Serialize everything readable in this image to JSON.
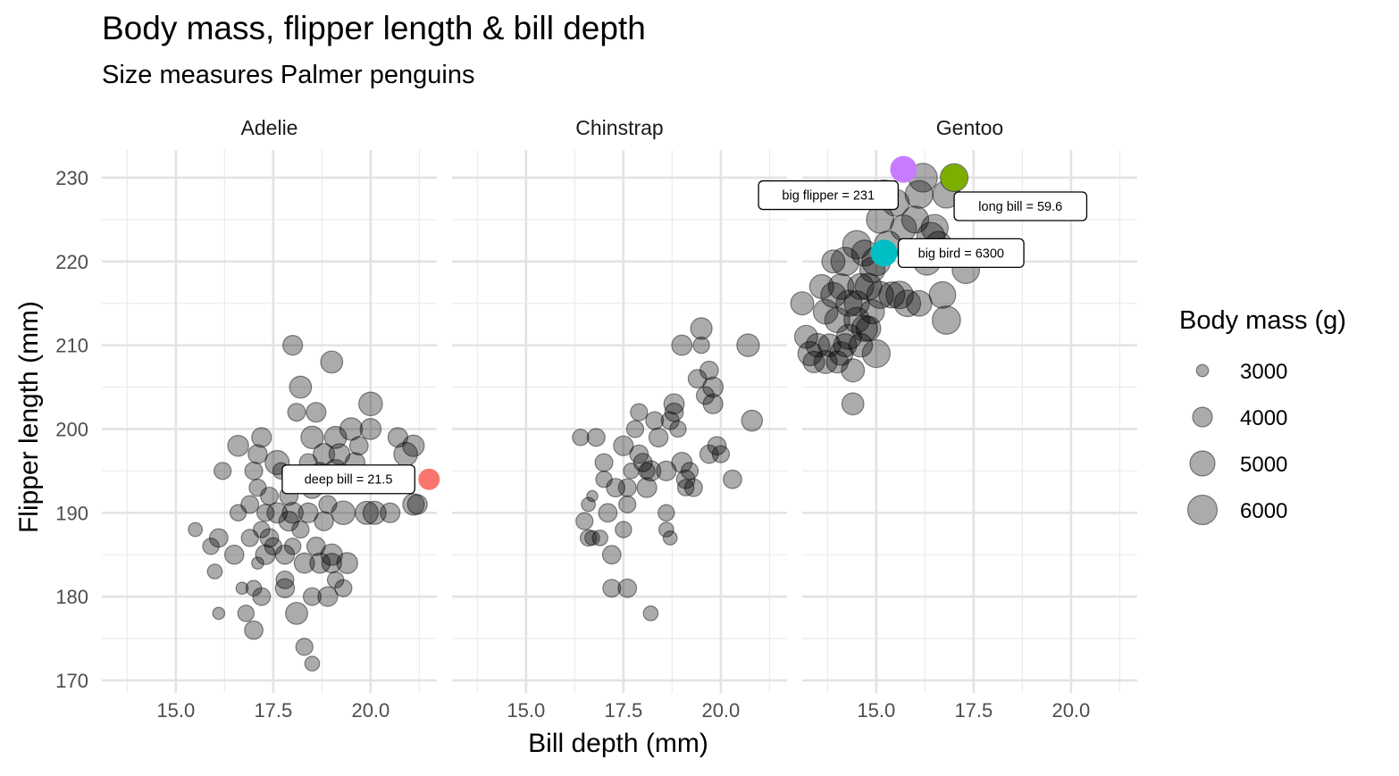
{
  "chart_data": {
    "type": "scatter",
    "title": "Body mass, flipper length & bill depth",
    "subtitle": "Size measures Palmer penguins",
    "xlabel": "Bill depth (mm)",
    "ylabel": "Flipper length (mm)",
    "xlim": [
      13.1,
      21.7
    ],
    "ylim": [
      168.5,
      233.3
    ],
    "x_ticks": [
      "15.0",
      "17.5",
      "20.0"
    ],
    "y_ticks": [
      "170",
      "180",
      "190",
      "200",
      "210",
      "220",
      "230"
    ],
    "grid": true,
    "legend": {
      "title": "Body mass (g)",
      "placement": "right",
      "entries": [
        {
          "label": "3000",
          "value": 3000
        },
        {
          "label": "4000",
          "value": 4000
        },
        {
          "label": "5000",
          "value": 5000
        },
        {
          "label": "6000",
          "value": 6000
        }
      ]
    },
    "point_color": "#000000",
    "point_alpha": 0.33,
    "facets": [
      {
        "name": "Adelie",
        "points": [
          [
            15.5,
            188,
            3200
          ],
          [
            15.9,
            186,
            3500
          ],
          [
            16.0,
            183,
            3300
          ],
          [
            16.1,
            187,
            3800
          ],
          [
            16.1,
            178,
            3000
          ],
          [
            16.2,
            195,
            3600
          ],
          [
            16.5,
            185,
            3900
          ],
          [
            16.6,
            198,
            4200
          ],
          [
            16.6,
            190,
            3500
          ],
          [
            16.7,
            181,
            3000
          ],
          [
            16.8,
            178,
            3500
          ],
          [
            16.9,
            191,
            3700
          ],
          [
            16.9,
            187,
            3600
          ],
          [
            17.0,
            181,
            3400
          ],
          [
            17.0,
            195,
            3700
          ],
          [
            17.0,
            176,
            3800
          ],
          [
            17.1,
            184,
            3000
          ],
          [
            17.1,
            193,
            3600
          ],
          [
            17.1,
            197,
            3900
          ],
          [
            17.2,
            180,
            3700
          ],
          [
            17.2,
            199,
            4000
          ],
          [
            17.2,
            188,
            3500
          ],
          [
            17.3,
            185,
            4000
          ],
          [
            17.3,
            190,
            3600
          ],
          [
            17.4,
            187,
            3800
          ],
          [
            17.4,
            192,
            3700
          ],
          [
            17.5,
            186,
            3600
          ],
          [
            17.6,
            190,
            4100
          ],
          [
            17.6,
            196,
            4800
          ],
          [
            17.7,
            195,
            3500
          ],
          [
            17.8,
            185,
            3900
          ],
          [
            17.8,
            182,
            3700
          ],
          [
            17.8,
            181,
            3900
          ],
          [
            17.9,
            189,
            4000
          ],
          [
            17.9,
            192,
            3800
          ],
          [
            18.0,
            190,
            4200
          ],
          [
            18.0,
            186,
            3500
          ],
          [
            18.0,
            210,
            4000
          ],
          [
            18.1,
            178,
            4400
          ],
          [
            18.1,
            202,
            3700
          ],
          [
            18.2,
            205,
            4400
          ],
          [
            18.2,
            188,
            3600
          ],
          [
            18.3,
            174,
            3600
          ],
          [
            18.3,
            184,
            4100
          ],
          [
            18.4,
            196,
            3700
          ],
          [
            18.4,
            190,
            4000
          ],
          [
            18.5,
            172,
            3300
          ],
          [
            18.5,
            180,
            3700
          ],
          [
            18.5,
            193,
            4300
          ],
          [
            18.5,
            199,
            4500
          ],
          [
            18.6,
            202,
            4000
          ],
          [
            18.6,
            186,
            3800
          ],
          [
            18.7,
            184,
            4100
          ],
          [
            18.7,
            195,
            3600
          ],
          [
            18.8,
            189,
            3900
          ],
          [
            18.8,
            197,
            4300
          ],
          [
            18.9,
            180,
            4000
          ],
          [
            18.9,
            191,
            3700
          ],
          [
            19.0,
            208,
            4400
          ],
          [
            19.0,
            185,
            4300
          ],
          [
            19.0,
            184,
            4000
          ],
          [
            19.1,
            195,
            4500
          ],
          [
            19.1,
            199,
            4400
          ],
          [
            19.1,
            182,
            3500
          ],
          [
            19.2,
            197,
            4200
          ],
          [
            19.3,
            181,
            3600
          ],
          [
            19.3,
            190,
            4700
          ],
          [
            19.4,
            184,
            4200
          ],
          [
            19.5,
            200,
            4500
          ],
          [
            19.6,
            196,
            4000
          ],
          [
            19.7,
            198,
            3800
          ],
          [
            19.9,
            190,
            4600
          ],
          [
            20.0,
            203,
            4700
          ],
          [
            20.0,
            200,
            4200
          ],
          [
            20.1,
            190,
            4600
          ],
          [
            20.3,
            194,
            3800
          ],
          [
            20.5,
            190,
            4000
          ],
          [
            20.7,
            199,
            4000
          ],
          [
            20.9,
            197,
            4700
          ],
          [
            21.1,
            198,
            4300
          ],
          [
            21.1,
            191,
            4300
          ],
          [
            21.2,
            191,
            4000
          ]
        ]
      },
      {
        "name": "Chinstrap",
        "points": [
          [
            16.4,
            199,
            3500
          ],
          [
            16.5,
            189,
            3600
          ],
          [
            16.6,
            191,
            3200
          ],
          [
            16.6,
            187,
            3500
          ],
          [
            16.7,
            192,
            2900
          ],
          [
            16.7,
            187,
            3300
          ],
          [
            16.8,
            199,
            3700
          ],
          [
            16.9,
            187,
            3400
          ],
          [
            17.0,
            196,
            3700
          ],
          [
            17.0,
            194,
            3500
          ],
          [
            17.1,
            190,
            3800
          ],
          [
            17.2,
            181,
            3700
          ],
          [
            17.2,
            185,
            3800
          ],
          [
            17.3,
            193,
            3800
          ],
          [
            17.5,
            198,
            4000
          ],
          [
            17.5,
            188,
            3500
          ],
          [
            17.6,
            193,
            3700
          ],
          [
            17.6,
            191,
            3600
          ],
          [
            17.6,
            181,
            3800
          ],
          [
            17.7,
            195,
            3400
          ],
          [
            17.8,
            200,
            3600
          ],
          [
            17.9,
            202,
            3600
          ],
          [
            17.9,
            197,
            3800
          ],
          [
            18.0,
            196,
            3800
          ],
          [
            18.1,
            195,
            3500
          ],
          [
            18.1,
            193,
            4000
          ],
          [
            18.2,
            178,
            3300
          ],
          [
            18.2,
            195,
            4100
          ],
          [
            18.3,
            201,
            3700
          ],
          [
            18.4,
            199,
            3900
          ],
          [
            18.6,
            195,
            4000
          ],
          [
            18.6,
            190,
            3500
          ],
          [
            18.6,
            188,
            3300
          ],
          [
            18.7,
            187,
            3200
          ],
          [
            18.7,
            201,
            3700
          ],
          [
            18.8,
            203,
            4100
          ],
          [
            18.8,
            202,
            3800
          ],
          [
            18.9,
            200,
            3500
          ],
          [
            19.0,
            210,
            4100
          ],
          [
            19.0,
            196,
            4100
          ],
          [
            19.1,
            194,
            3800
          ],
          [
            19.1,
            193,
            3500
          ],
          [
            19.2,
            195,
            3600
          ],
          [
            19.3,
            193,
            3700
          ],
          [
            19.4,
            206,
            3800
          ],
          [
            19.5,
            212,
            4300
          ],
          [
            19.5,
            210,
            3500
          ],
          [
            19.6,
            204,
            3700
          ],
          [
            19.7,
            207,
            3800
          ],
          [
            19.7,
            197,
            3800
          ],
          [
            19.8,
            203,
            4000
          ],
          [
            19.8,
            205,
            4100
          ],
          [
            19.9,
            198,
            3800
          ],
          [
            20.0,
            197,
            3600
          ],
          [
            20.3,
            194,
            3800
          ],
          [
            20.7,
            210,
            4500
          ],
          [
            20.8,
            201,
            4200
          ]
        ]
      },
      {
        "name": "Gentoo",
        "points": [
          [
            13.1,
            215,
            4600
          ],
          [
            13.2,
            211,
            4600
          ],
          [
            13.3,
            209,
            4800
          ],
          [
            13.4,
            208,
            4300
          ],
          [
            13.5,
            210,
            4700
          ],
          [
            13.6,
            217,
            4800
          ],
          [
            13.7,
            214,
            4900
          ],
          [
            13.7,
            208,
            4600
          ],
          [
            13.8,
            210,
            4500
          ],
          [
            13.9,
            220,
            4600
          ],
          [
            13.9,
            216,
            5000
          ],
          [
            14.0,
            213,
            5000
          ],
          [
            14.0,
            208,
            4400
          ],
          [
            14.1,
            217,
            5100
          ],
          [
            14.1,
            209,
            4700
          ],
          [
            14.2,
            220,
            5700
          ],
          [
            14.2,
            210,
            4600
          ],
          [
            14.3,
            215,
            5200
          ],
          [
            14.3,
            211,
            5000
          ],
          [
            14.4,
            207,
            4600
          ],
          [
            14.4,
            203,
            4400
          ],
          [
            14.5,
            222,
            5700
          ],
          [
            14.5,
            213,
            5100
          ],
          [
            14.5,
            215,
            5000
          ],
          [
            14.6,
            217,
            5200
          ],
          [
            14.6,
            210,
            4700
          ],
          [
            14.7,
            212,
            5200
          ],
          [
            14.7,
            221,
            5200
          ],
          [
            14.8,
            217,
            5300
          ],
          [
            14.8,
            212,
            4900
          ],
          [
            14.9,
            219,
            5000
          ],
          [
            14.9,
            214,
            4800
          ],
          [
            15.0,
            209,
            5600
          ],
          [
            15.0,
            220,
            5800
          ],
          [
            15.1,
            216,
            5400
          ],
          [
            15.1,
            225,
            5500
          ],
          [
            15.2,
            228,
            5800
          ],
          [
            15.3,
            222,
            5500
          ],
          [
            15.4,
            216,
            5200
          ],
          [
            15.5,
            227,
            5400
          ],
          [
            15.6,
            216,
            5500
          ],
          [
            15.7,
            224,
            5200
          ],
          [
            15.8,
            215,
            5300
          ],
          [
            15.9,
            221,
            5500
          ],
          [
            16.0,
            225,
            5400
          ],
          [
            16.1,
            228,
            5600
          ],
          [
            16.1,
            215,
            5100
          ],
          [
            16.2,
            230,
            5800
          ],
          [
            16.3,
            220,
            5500
          ],
          [
            16.4,
            223,
            5600
          ],
          [
            16.5,
            224,
            5400
          ],
          [
            16.6,
            222,
            5300
          ],
          [
            16.7,
            216,
            5300
          ],
          [
            16.8,
            213,
            5700
          ],
          [
            16.8,
            228,
            5500
          ],
          [
            17.0,
            230,
            5600
          ],
          [
            17.3,
            219,
            5500
          ]
        ]
      }
    ],
    "highlights": [
      {
        "facet": "Adelie",
        "x": 21.5,
        "y": 194,
        "label": "deep bill = 21.5",
        "color": "#F8766D",
        "label_side": "left"
      },
      {
        "facet": "Gentoo",
        "x": 15.7,
        "y": 231,
        "label": "big flipper = 231",
        "color": "#C77CFF",
        "label_side": "below-left"
      },
      {
        "facet": "Gentoo",
        "x": 17.0,
        "y": 230,
        "label": "long bill = 59.6",
        "color": "#7CAE00",
        "label_side": "below-right"
      },
      {
        "facet": "Gentoo",
        "x": 15.2,
        "y": 221,
        "label": "big bird = 6300",
        "color": "#00BFC4",
        "label_side": "right"
      }
    ]
  }
}
